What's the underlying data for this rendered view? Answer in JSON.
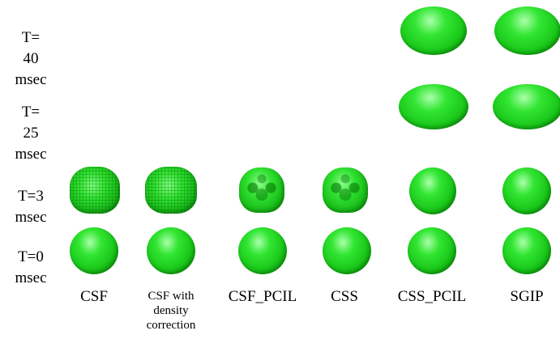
{
  "rows": [
    {
      "id": "t40",
      "lines": [
        "T=",
        "40",
        "msec"
      ]
    },
    {
      "id": "t25",
      "lines": [
        "T=",
        "25",
        "msec"
      ]
    },
    {
      "id": "t3",
      "lines": [
        "T=3",
        "msec"
      ]
    },
    {
      "id": "t0",
      "lines": [
        "T=0",
        "msec"
      ]
    }
  ],
  "columns": [
    {
      "id": "csf",
      "lines": [
        "CSF"
      ]
    },
    {
      "id": "csf-density",
      "lines": [
        "CSF with",
        "density",
        "correction"
      ]
    },
    {
      "id": "csf-pcil",
      "lines": [
        "CSF_PCIL"
      ]
    },
    {
      "id": "css",
      "lines": [
        "CSS"
      ]
    },
    {
      "id": "css-pcil",
      "lines": [
        "CSS_PCIL"
      ]
    },
    {
      "id": "sgip",
      "lines": [
        "SGIP"
      ]
    }
  ],
  "colors": {
    "droplet": "#22cc22",
    "background": "#ffffff"
  },
  "droplets": {
    "t40": [
      "",
      "",
      "",
      "",
      "flattened",
      "flattened"
    ],
    "t25": [
      "",
      "",
      "",
      "",
      "flattened",
      "flattened"
    ],
    "t3": [
      "rough",
      "rough",
      "bumpy",
      "bumpy",
      "sphere",
      "sphere"
    ],
    "t0": [
      "sphere",
      "sphere",
      "sphere",
      "sphere",
      "sphere",
      "sphere"
    ]
  }
}
